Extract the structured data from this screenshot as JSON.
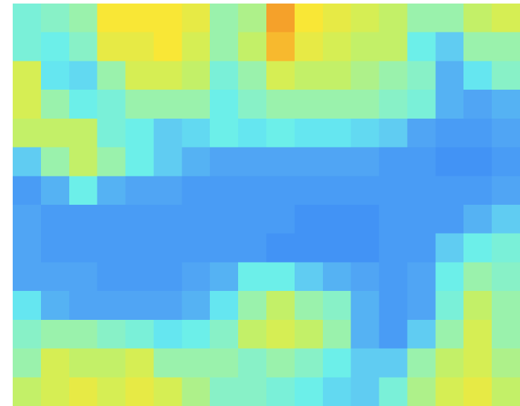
{
  "chart_data": {
    "type": "heatmap",
    "zlim": [
      0,
      1
    ],
    "colorscale": [
      "#3b8bf6",
      "#4fa3f4",
      "#5fc8f2",
      "#66eef0",
      "#8ef2c0",
      "#c9f05e",
      "#fbe634",
      "#f5a12a"
    ],
    "values": [
      [
        0.5,
        0.55,
        0.6,
        0.85,
        0.85,
        0.85,
        0.8,
        0.6,
        0.65,
        1.0,
        0.85,
        0.8,
        0.75,
        0.7,
        0.6,
        0.6,
        0.7,
        0.75
      ],
      [
        0.5,
        0.45,
        0.55,
        0.8,
        0.8,
        0.85,
        0.75,
        0.6,
        0.7,
        0.95,
        0.8,
        0.75,
        0.7,
        0.7,
        0.45,
        0.3,
        0.6,
        0.6
      ],
      [
        0.75,
        0.4,
        0.35,
        0.6,
        0.75,
        0.75,
        0.7,
        0.5,
        0.6,
        0.75,
        0.7,
        0.7,
        0.65,
        0.6,
        0.55,
        0.2,
        0.4,
        0.55
      ],
      [
        0.75,
        0.6,
        0.45,
        0.5,
        0.6,
        0.6,
        0.6,
        0.45,
        0.55,
        0.6,
        0.6,
        0.6,
        0.6,
        0.55,
        0.5,
        0.2,
        0.15,
        0.2
      ],
      [
        0.7,
        0.7,
        0.7,
        0.5,
        0.45,
        0.3,
        0.35,
        0.45,
        0.4,
        0.45,
        0.4,
        0.4,
        0.35,
        0.3,
        0.15,
        0.1,
        0.1,
        0.15
      ],
      [
        0.3,
        0.6,
        0.7,
        0.6,
        0.45,
        0.3,
        0.2,
        0.15,
        0.15,
        0.15,
        0.15,
        0.15,
        0.15,
        0.1,
        0.1,
        0.05,
        0.05,
        0.1
      ],
      [
        0.1,
        0.2,
        0.45,
        0.2,
        0.15,
        0.15,
        0.1,
        0.1,
        0.1,
        0.1,
        0.1,
        0.1,
        0.1,
        0.1,
        0.1,
        0.1,
        0.1,
        0.15
      ],
      [
        0.15,
        0.1,
        0.1,
        0.1,
        0.1,
        0.1,
        0.1,
        0.1,
        0.1,
        0.1,
        0.05,
        0.05,
        0.05,
        0.1,
        0.1,
        0.1,
        0.2,
        0.3
      ],
      [
        0.15,
        0.1,
        0.1,
        0.1,
        0.1,
        0.1,
        0.1,
        0.1,
        0.1,
        0.05,
        0.05,
        0.05,
        0.05,
        0.1,
        0.1,
        0.3,
        0.45,
        0.5
      ],
      [
        0.15,
        0.15,
        0.15,
        0.1,
        0.1,
        0.1,
        0.15,
        0.2,
        0.45,
        0.45,
        0.3,
        0.2,
        0.15,
        0.1,
        0.15,
        0.45,
        0.6,
        0.55
      ],
      [
        0.4,
        0.2,
        0.15,
        0.15,
        0.15,
        0.15,
        0.2,
        0.4,
        0.6,
        0.7,
        0.6,
        0.55,
        0.2,
        0.1,
        0.15,
        0.5,
        0.7,
        0.6
      ],
      [
        0.55,
        0.6,
        0.6,
        0.55,
        0.5,
        0.4,
        0.45,
        0.55,
        0.7,
        0.75,
        0.7,
        0.6,
        0.2,
        0.1,
        0.3,
        0.6,
        0.75,
        0.6
      ],
      [
        0.6,
        0.75,
        0.7,
        0.7,
        0.75,
        0.6,
        0.6,
        0.6,
        0.55,
        0.6,
        0.55,
        0.45,
        0.3,
        0.3,
        0.6,
        0.7,
        0.75,
        0.65
      ],
      [
        0.7,
        0.75,
        0.8,
        0.75,
        0.8,
        0.75,
        0.65,
        0.55,
        0.55,
        0.5,
        0.45,
        0.35,
        0.3,
        0.5,
        0.65,
        0.75,
        0.8,
        0.7
      ]
    ]
  }
}
